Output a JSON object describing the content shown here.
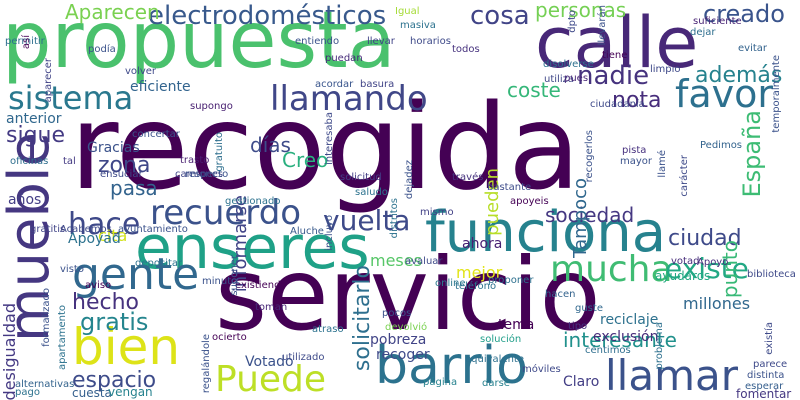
{
  "words": [
    {
      "text": "recogida",
      "color": "#440154",
      "vertical": false
    },
    {
      "text": "servicio",
      "color": "#440154",
      "vertical": false
    },
    {
      "text": "propuesta",
      "color": "#4ac16d",
      "vertical": false
    },
    {
      "text": "calle",
      "color": "#482878",
      "vertical": false
    },
    {
      "text": "enseres",
      "color": "#1fa187",
      "vertical": false
    },
    {
      "text": "funciona",
      "color": "#26828e",
      "vertical": false
    },
    {
      "text": "barrio",
      "color": "#2c728e",
      "vertical": false
    },
    {
      "text": "mueble",
      "color": "#453781",
      "vertical": true
    },
    {
      "text": "bien",
      "color": "#dde318",
      "vertical": false
    },
    {
      "text": "gente",
      "color": "#31688e",
      "vertical": false
    },
    {
      "text": "mucha",
      "color": "#3fbc73",
      "vertical": false
    },
    {
      "text": "llamar",
      "color": "#3b528b",
      "vertical": false
    },
    {
      "text": "Puede",
      "color": "#bddf26",
      "vertical": false
    },
    {
      "text": "recuerdo",
      "color": "#3b528b",
      "vertical": false
    },
    {
      "text": "llamando",
      "color": "#404788",
      "vertical": false
    },
    {
      "text": "sistema",
      "color": "#2a788e",
      "vertical": false
    },
    {
      "text": "favor",
      "color": "#2d708e",
      "vertical": false
    },
    {
      "text": "hace",
      "color": "#3e4989",
      "vertical": false
    },
    {
      "text": "vuelta",
      "color": "#3e4a89",
      "vertical": false
    },
    {
      "text": "existe",
      "color": "#22a884",
      "vertical": false
    },
    {
      "text": "electrodomésticos",
      "color": "#38598c",
      "vertical": false
    },
    {
      "text": "Aparecen",
      "color": "#7ad151",
      "vertical": false
    },
    {
      "text": "personas",
      "color": "#75d054",
      "vertical": false
    },
    {
      "text": "cosa",
      "color": "#414487",
      "vertical": false
    },
    {
      "text": "creado",
      "color": "#3a548c",
      "vertical": false
    },
    {
      "text": "nadie",
      "color": "#46337e",
      "vertical": false
    },
    {
      "text": "además",
      "color": "#26828e",
      "vertical": false
    },
    {
      "text": "España",
      "color": "#3dbc74",
      "vertical": true
    },
    {
      "text": "coste",
      "color": "#35b779",
      "vertical": false
    },
    {
      "text": "nota",
      "color": "#472d7b",
      "vertical": false
    },
    {
      "text": "sigue",
      "color": "#443a83",
      "vertical": false
    },
    {
      "text": "zona",
      "color": "#3f4788",
      "vertical": false
    },
    {
      "text": "pasa",
      "color": "#33638d",
      "vertical": false
    },
    {
      "text": "gratis",
      "color": "#25858e",
      "vertical": false
    },
    {
      "text": "hecho",
      "color": "#46327e",
      "vertical": false
    },
    {
      "text": "espacio",
      "color": "#3e4c8a",
      "vertical": false
    },
    {
      "text": "ciudad",
      "color": "#3e4a89",
      "vertical": false
    },
    {
      "text": "sociedad",
      "color": "#453882",
      "vertical": false
    },
    {
      "text": "solicitarlo",
      "color": "#2e6f8e",
      "vertical": true
    },
    {
      "text": "interesante",
      "color": "#21918c",
      "vertical": false
    },
    {
      "text": "punto",
      "color": "#38b977",
      "vertical": true
    },
    {
      "text": "días",
      "color": "#3e4c8a",
      "vertical": false
    },
    {
      "text": "Creo",
      "color": "#2ab07f",
      "vertical": false
    },
    {
      "text": "pueden",
      "color": "#b8de29",
      "vertical": true
    },
    {
      "text": "Tampoco",
      "color": "#31688e",
      "vertical": true
    },
    {
      "text": "informarse",
      "color": "#414487",
      "vertical": true
    },
    {
      "text": "millones",
      "color": "#31688e",
      "vertical": false
    },
    {
      "text": "exclusión",
      "color": "#472c7a",
      "vertical": false
    },
    {
      "text": "reciclaje",
      "color": "#2d718e",
      "vertical": false
    },
    {
      "text": "mejor",
      "color": "#e2e418",
      "vertical": false
    },
    {
      "text": "meses",
      "color": "#56c667",
      "vertical": false
    },
    {
      "text": "ahora",
      "color": "#482173",
      "vertical": false
    },
    {
      "text": "Claro",
      "color": "#433e85",
      "vertical": false
    },
    {
      "text": "pobreza",
      "color": "#414487",
      "vertical": false
    },
    {
      "text": "recoger",
      "color": "#3e4a89",
      "vertical": false
    },
    {
      "text": "tema",
      "color": "#440154",
      "vertical": false
    },
    {
      "text": "cita",
      "color": "#d2e21b",
      "vertical": false
    },
    {
      "text": "años",
      "color": "#433e85",
      "vertical": false
    },
    {
      "text": "anterior",
      "color": "#31688e",
      "vertical": false
    },
    {
      "text": "Apoyad",
      "color": "#2c728e",
      "vertical": false
    },
    {
      "text": "Votado",
      "color": "#3b528b",
      "vertical": false
    },
    {
      "text": "Gracias",
      "color": "#3b528b",
      "vertical": false
    },
    {
      "text": "desigualdad",
      "color": "#443983",
      "vertical": true
    },
    {
      "text": "eficiente",
      "color": "#32648e",
      "vertical": false
    },
    {
      "text": "ayudaros",
      "color": "#22a884",
      "vertical": false
    },
    {
      "text": "suficiente",
      "color": "#482475",
      "vertical": false
    },
    {
      "text": "dejar",
      "color": "#2e6e8e",
      "vertical": false
    },
    {
      "text": "evitar",
      "color": "#33638d",
      "vertical": false
    },
    {
      "text": "cuesta",
      "color": "#355f8d",
      "vertical": false
    },
    {
      "text": "vengan",
      "color": "#26828e",
      "vertical": false
    },
    {
      "text": "alternativas",
      "color": "#33638d",
      "vertical": false
    },
    {
      "text": "pago",
      "color": "#2c728e",
      "vertical": false
    },
    {
      "text": "fomentar",
      "color": "#453882",
      "vertical": false
    },
    {
      "text": "esperar",
      "color": "#355e8d",
      "vertical": false
    },
    {
      "text": "distinta",
      "color": "#3b528b",
      "vertical": false
    },
    {
      "text": "darse",
      "color": "#27808e",
      "vertical": false
    },
    {
      "text": "parece",
      "color": "#3e4989",
      "vertical": false
    },
    {
      "text": "tipo",
      "color": "#46307e",
      "vertical": false
    },
    {
      "text": "guste",
      "color": "#31688e",
      "vertical": false
    },
    {
      "text": "solución",
      "color": "#1f9e89",
      "vertical": false
    },
    {
      "text": "pocos",
      "color": "#3b528b",
      "vertical": false
    },
    {
      "text": "hacen",
      "color": "#33638d",
      "vertical": false
    },
    {
      "text": "existiendo",
      "color": "#440154",
      "vertical": false
    },
    {
      "text": "online",
      "color": "#2a788e",
      "vertical": false
    },
    {
      "text": "proponer",
      "color": "#2d708e",
      "vertical": false
    },
    {
      "text": "avaluar",
      "color": "#3e4a89",
      "vertical": false
    },
    {
      "text": "votad",
      "color": "#472d7b",
      "vertical": false
    },
    {
      "text": "ayuntamiento",
      "color": "#3b528b",
      "vertical": false
    },
    {
      "text": "Acabemos",
      "color": "#3e4989",
      "vertical": false
    },
    {
      "text": "trasto",
      "color": "#481f70",
      "vertical": false
    },
    {
      "text": "camiones",
      "color": "#404688",
      "vertical": false
    },
    {
      "text": "saludo",
      "color": "#2c728e",
      "vertical": false
    },
    {
      "text": "solicitud",
      "color": "#433e85",
      "vertical": false
    },
    {
      "text": "través",
      "color": "#46337e",
      "vertical": false
    },
    {
      "text": "bastante",
      "color": "#3e4c8a",
      "vertical": false
    },
    {
      "text": "Pedimos",
      "color": "#33638d",
      "vertical": false
    },
    {
      "text": "mayor",
      "color": "#3b528b",
      "vertical": false
    },
    {
      "text": "pista",
      "color": "#46307e",
      "vertical": false
    },
    {
      "text": "apoyeis",
      "color": "#440154",
      "vertical": false
    },
    {
      "text": "mismo",
      "color": "#424186",
      "vertical": false
    },
    {
      "text": "supongo",
      "color": "#482071",
      "vertical": false
    },
    {
      "text": "acordar",
      "color": "#39558c",
      "vertical": false
    },
    {
      "text": "basura",
      "color": "#414487",
      "vertical": false
    },
    {
      "text": "utiliza",
      "color": "#3f4788",
      "vertical": false
    },
    {
      "text": "pues",
      "color": "#482576",
      "vertical": false
    },
    {
      "text": "disolverse",
      "color": "#2d708e",
      "vertical": false
    },
    {
      "text": "limpio",
      "color": "#3e4989",
      "vertical": false
    },
    {
      "text": "volver",
      "color": "#3e4989",
      "vertical": false
    },
    {
      "text": "llevar",
      "color": "#414487",
      "vertical": false
    },
    {
      "text": "horarios",
      "color": "#3e4a89",
      "vertical": false
    },
    {
      "text": "todos",
      "color": "#46327e",
      "vertical": false
    },
    {
      "text": "puedan",
      "color": "#472c7a",
      "vertical": false
    },
    {
      "text": "entiendo",
      "color": "#3b528b",
      "vertical": false
    },
    {
      "text": "podía",
      "color": "#3b528b",
      "vertical": false
    },
    {
      "text": "permitir",
      "color": "#2e6f8e",
      "vertical": false
    },
    {
      "text": "Igual",
      "color": "#a5db36",
      "vertical": false
    },
    {
      "text": "masiva",
      "color": "#2c728e",
      "vertical": false
    },
    {
      "text": "ciudadanía",
      "color": "#3e4989",
      "vertical": false
    },
    {
      "text": "tiene",
      "color": "#440154",
      "vertical": false
    },
    {
      "text": "concertar",
      "color": "#3b528b",
      "vertical": false
    },
    {
      "text": "tal",
      "color": "#443a83",
      "vertical": false
    },
    {
      "text": "oficinas",
      "color": "#2e6e8e",
      "vertical": false
    },
    {
      "text": "ensuciar",
      "color": "#3e4989",
      "vertical": false
    },
    {
      "text": "respecto",
      "color": "#3b528b",
      "vertical": false
    },
    {
      "text": "gestionado",
      "color": "#2c728e",
      "vertical": false
    },
    {
      "text": "minuto",
      "color": "#3b528b",
      "vertical": false
    },
    {
      "text": "toman",
      "color": "#482878",
      "vertical": false
    },
    {
      "text": "utilizado",
      "color": "#3e4a89",
      "vertical": false
    },
    {
      "text": "equivalente",
      "color": "#2d708e",
      "vertical": false
    },
    {
      "text": "devolvió",
      "color": "#7ad151",
      "vertical": false
    },
    {
      "text": "atraso",
      "color": "#2c728e",
      "vertical": false
    },
    {
      "text": "ocierto",
      "color": "#440154",
      "vertical": false
    },
    {
      "text": "aviso",
      "color": "#440154",
      "vertical": false
    },
    {
      "text": "visto",
      "color": "#3b528b",
      "vertical": false
    },
    {
      "text": "gratitis",
      "color": "#414487",
      "vertical": false
    },
    {
      "text": "depositar",
      "color": "#2c728e",
      "vertical": false
    },
    {
      "text": "céntimos",
      "color": "#2e6e8e",
      "vertical": false
    },
    {
      "text": "móviles",
      "color": "#3e4989",
      "vertical": false
    },
    {
      "text": "página",
      "color": "#26828e",
      "vertical": false
    },
    {
      "text": "teléfono",
      "color": "#2c728e",
      "vertical": false
    },
    {
      "text": "Apoyo",
      "color": "#472d7b",
      "vertical": false
    },
    {
      "text": "biblioteca",
      "color": "#3e4989",
      "vertical": false
    },
    {
      "text": "Aluche",
      "color": "#38598c",
      "vertical": false
    },
    {
      "text": "problema",
      "color": "#2d708e",
      "vertical": true
    },
    {
      "text": "existía",
      "color": "#3e4a89",
      "vertical": true
    },
    {
      "text": "llamé",
      "color": "#3b528b",
      "vertical": true
    },
    {
      "text": "carácter",
      "color": "#3e4a89",
      "vertical": true
    },
    {
      "text": "temporalmente",
      "color": "#3b528b",
      "vertical": true
    },
    {
      "text": "recogerlos",
      "color": "#3b528b",
      "vertical": true
    },
    {
      "text": "distritos",
      "color": "#2c728e",
      "vertical": true
    },
    {
      "text": "gratuito",
      "color": "#2e6f8e",
      "vertical": true
    },
    {
      "text": "incluyo",
      "color": "#3b528b",
      "vertical": true
    },
    {
      "text": "suponer",
      "color": "#3b528b",
      "vertical": true
    },
    {
      "text": "interesaba",
      "color": "#3e4989",
      "vertical": true
    },
    {
      "text": "apartamento",
      "color": "#2c728e",
      "vertical": true
    },
    {
      "text": "formalizado",
      "color": "#3b528b",
      "vertical": true
    },
    {
      "text": "regalándole",
      "color": "#3b528b",
      "vertical": true
    },
    {
      "text": "así",
      "color": "#440154",
      "vertical": true
    },
    {
      "text": "dpto",
      "color": "#3e4989",
      "vertical": true
    },
    {
      "text": "llevarán",
      "color": "#3b528b",
      "vertical": true
    },
    {
      "text": "dejadez",
      "color": "#3b528b",
      "vertical": true
    },
    {
      "text": "aparecer",
      "color": "#414487",
      "vertical": true
    }
  ]
}
